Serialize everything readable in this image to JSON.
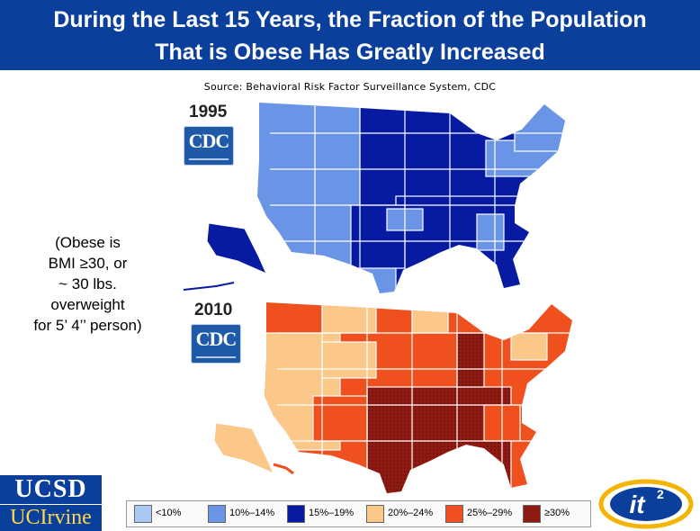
{
  "title": {
    "line1": "During the Last 15 Years, the Fraction of the Population",
    "line2": "That is Obese Has Greatly Increased"
  },
  "source": "Source: Behavioral Risk Factor Surveillance System, CDC",
  "note": {
    "line1": "(Obese is",
    "line2": "BMI ≥30, or",
    "line3": "~ 30 lbs.",
    "line4": "overweight",
    "line5": "for 5’ 4’’ person)"
  },
  "maps": [
    {
      "year": "1995",
      "logo": "CDC"
    },
    {
      "year": "2010",
      "logo": "CDC"
    }
  ],
  "legend": [
    {
      "label": "<10%",
      "color": "#a9c8f2"
    },
    {
      "label": "10%–14%",
      "color": "#6a95e6"
    },
    {
      "label": "15%–19%",
      "color": "#061aa2"
    },
    {
      "label": "20%–24%",
      "color": "#fbc88a"
    },
    {
      "label": "25%–29%",
      "color": "#f0501e"
    },
    {
      "label": "≥30%",
      "color": "#8e1a12"
    }
  ],
  "logos": {
    "ucsd": "UCSD",
    "uci": "UCIrvine",
    "it2": "it2"
  }
}
